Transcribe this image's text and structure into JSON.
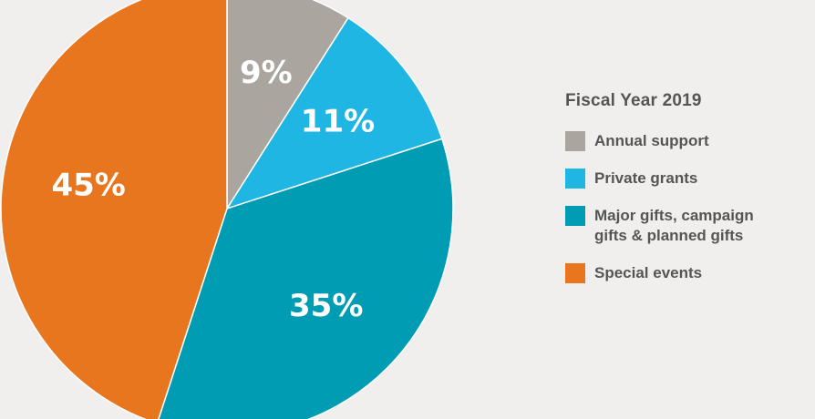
{
  "chart_data": {
    "type": "pie",
    "title": "",
    "slices": [
      {
        "label": "Annual support",
        "value": 9,
        "display": "9%",
        "color": "#aaa59f"
      },
      {
        "label": "Private grants",
        "value": 11,
        "display": "11%",
        "color": "#1fb6e4"
      },
      {
        "label": "Major gifts, campaign\ngifts & planned gifts",
        "value": 35,
        "display": "35%",
        "color": "#009cb3"
      },
      {
        "label": "Special events",
        "value": 45,
        "display": "45%",
        "color": "#e8761e"
      }
    ],
    "start_angle_deg": 0,
    "direction": "clockwise",
    "legend_placement": "right"
  },
  "legend": {
    "title": "Fiscal Year 2019",
    "items": [
      {
        "label": "Annual support",
        "color": "#aaa59f"
      },
      {
        "label": "Private grants",
        "color": "#1fb6e4"
      },
      {
        "label": "Major gifts, campaign\ngifts & planned gifts",
        "color": "#009cb3"
      },
      {
        "label": "Special events",
        "color": "#e8761e"
      }
    ]
  }
}
